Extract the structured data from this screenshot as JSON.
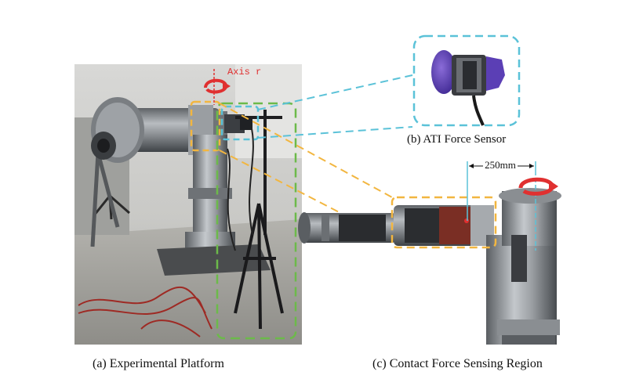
{
  "panels": {
    "a": {
      "caption": "(a) Experimental Platform",
      "annotation": "Axis r"
    },
    "b": {
      "caption": "(b) ATI Force Sensor"
    },
    "c": {
      "caption": "(c) Contact Force Sensing Region",
      "dimension": "250mm"
    }
  },
  "colors": {
    "dash_blue": "#5bc2d8",
    "dash_orange": "#f2b640",
    "dash_green": "#6cba4a",
    "arrow_red": "#e03030",
    "sensor_purple": "#5b3fb5"
  }
}
